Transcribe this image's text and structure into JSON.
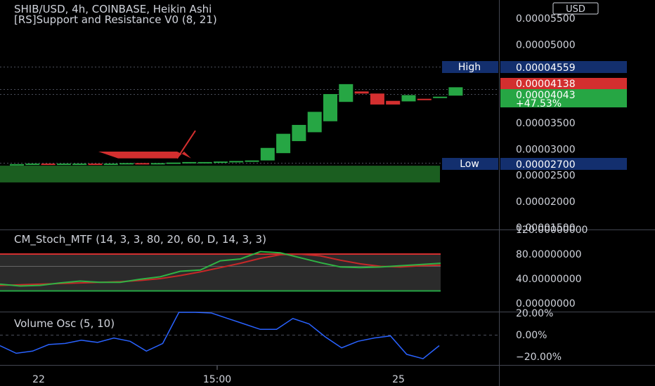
{
  "header": {
    "title": "SHIB/USD, 4h, COINBASE, Heikin Ashi",
    "indicator": "[RS]Support and Resistance V0 (8, 21)"
  },
  "price_axis": {
    "currency": "USD",
    "ticks": [
      "0.00005500",
      "0.00005000",
      "0.00003500",
      "0.00003000",
      "0.00002500",
      "0.00002000",
      "0.00001500"
    ],
    "high_label": "High",
    "high_value": "0.00004559",
    "low_label": "Low",
    "low_value": "0.00002700",
    "prev_close_value": "0.00004138",
    "last_value": "0.00004043",
    "change_pct": "+47.53%"
  },
  "stoch_panel": {
    "title": "CM_Stoch_MTF (14, 3, 3, 80, 20, 60, D, 14, 3, 3)",
    "ticks": [
      "120.00000000",
      "80.00000000",
      "40.00000000",
      "0.00000000"
    ]
  },
  "volume_panel": {
    "title": "Volume Osc (5, 10)",
    "ticks": [
      "20.00%",
      "0.00%",
      "−20.00%"
    ]
  },
  "time_axis": {
    "labels": [
      "22",
      "15:00",
      "25"
    ]
  },
  "colors": {
    "background": "#000000",
    "up": "#26a644",
    "down": "#d32f2f",
    "support_zone": "#1b5e20",
    "stoch_k": "#2fb344",
    "stoch_d": "#c62828",
    "volume_line": "#2962ff",
    "high_low_label": "#132f6e",
    "grid": "#2a2e39"
  },
  "chart_data": {
    "type": "candlestick",
    "candles": [
      {
        "open": 2.7e-05,
        "close": 2.71e-05
      },
      {
        "open": 2.71e-05,
        "close": 2.72e-05
      },
      {
        "open": 2.72e-05,
        "close": 2.71e-05
      },
      {
        "open": 2.71e-05,
        "close": 2.72e-05
      },
      {
        "open": 2.72e-05,
        "close": 2.72e-05
      },
      {
        "open": 2.72e-05,
        "close": 2.71e-05
      },
      {
        "open": 2.71e-05,
        "close": 2.72e-05
      },
      {
        "open": 2.72e-05,
        "close": 2.73e-05
      },
      {
        "open": 2.73e-05,
        "close": 2.72e-05
      },
      {
        "open": 2.72e-05,
        "close": 2.73e-05
      },
      {
        "open": 2.73e-05,
        "close": 2.74e-05
      },
      {
        "open": 2.74e-05,
        "close": 2.75e-05
      },
      {
        "open": 2.75e-05,
        "close": 2.75e-05
      },
      {
        "open": 2.75e-05,
        "close": 2.76e-05
      },
      {
        "open": 2.76e-05,
        "close": 2.77e-05
      },
      {
        "open": 2.77e-05,
        "close": 2.78e-05
      },
      {
        "open": 2.78e-05,
        "close": 3.02e-05
      },
      {
        "open": 2.92e-05,
        "close": 3.29e-05
      },
      {
        "open": 3.15e-05,
        "close": 3.46e-05
      },
      {
        "open": 3.32e-05,
        "close": 3.71e-05
      },
      {
        "open": 3.53e-05,
        "close": 4.05e-05
      },
      {
        "open": 3.9e-05,
        "close": 4.24e-05
      },
      {
        "open": 4.1e-05,
        "close": 4.06e-05
      },
      {
        "open": 4.06e-05,
        "close": 3.85e-05
      },
      {
        "open": 3.92e-05,
        "close": 3.85e-05
      },
      {
        "open": 3.91e-05,
        "close": 4.03e-05
      },
      {
        "open": 3.96e-05,
        "close": 3.94e-05
      },
      {
        "open": 3.98e-05,
        "close": 4e-05
      },
      {
        "open": 4.02e-05,
        "close": 4.18e-05
      }
    ],
    "resistance_shape": [
      2.95e-05,
      2.95e-05,
      2.82e-05,
      3.35e-05
    ],
    "support_zone": [
      2.36e-05,
      2.68e-05
    ],
    "stoch": {
      "k": [
        31,
        28,
        29,
        33,
        36,
        34,
        34,
        39,
        43,
        52,
        54,
        69,
        72,
        84,
        82,
        74,
        66,
        59,
        58,
        59,
        61,
        63,
        65
      ],
      "d": [
        29,
        30,
        31,
        32,
        33,
        34,
        35,
        37,
        40,
        45,
        51,
        58,
        65,
        73,
        79,
        80,
        77,
        70,
        64,
        60,
        59,
        61,
        62
      ],
      "upper": 80,
      "lower": 20
    },
    "volume_osc": [
      -10,
      -17,
      -15,
      -9,
      -8,
      -5,
      -7,
      -3,
      -6,
      -15,
      -8,
      30,
      25,
      20,
      15,
      10,
      5,
      5,
      15,
      10,
      -2,
      -12,
      -6,
      -3,
      -1,
      -18,
      -22,
      -10
    ]
  }
}
